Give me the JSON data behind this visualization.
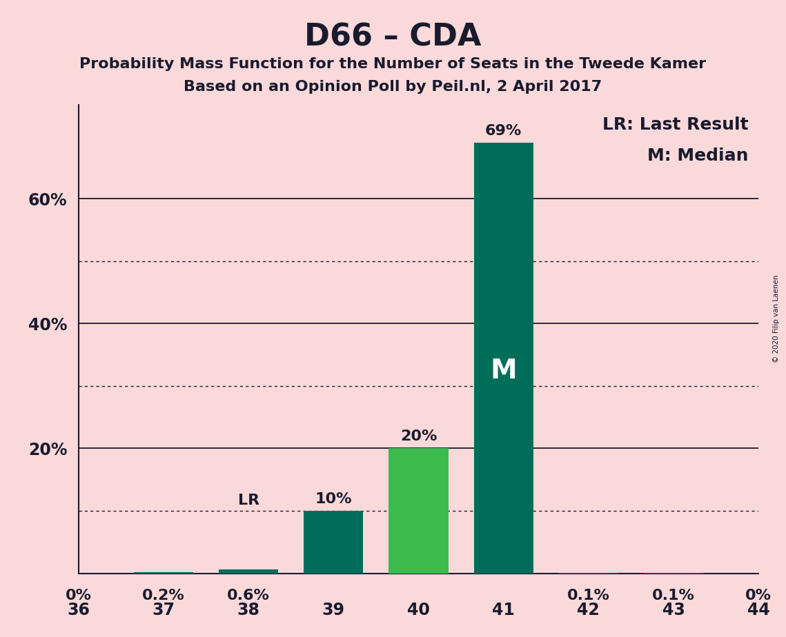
{
  "title": "D66 – CDA",
  "subtitle1": "Probability Mass Function for the Number of Seats in the Tweede Kamer",
  "subtitle2": "Based on an Opinion Poll by Peil.nl, 2 April 2017",
  "categories": [
    36,
    37,
    38,
    39,
    40,
    41,
    42,
    43,
    44
  ],
  "values": [
    0.0,
    0.2,
    0.6,
    10.0,
    20.0,
    69.0,
    0.1,
    0.1,
    0.0
  ],
  "bar_colors": [
    "#006d5b",
    "#006d5b",
    "#006d5b",
    "#006d5b",
    "#3dba4e",
    "#006d5b",
    "#006d5b",
    "#006d5b",
    "#006d5b"
  ],
  "labels": [
    "0%",
    "0.2%",
    "0.6%",
    "10%",
    "20%",
    "69%",
    "0.1%",
    "0.1%",
    "0%"
  ],
  "background_color": "#f9d9d9",
  "lr_index": 2,
  "median_index": 5,
  "lr_label": "LR",
  "median_label": "M",
  "legend_lr": "LR: Last Result",
  "legend_m": "M: Median",
  "copyright": "© 2020 Filip van Laenen",
  "ylim": [
    0,
    75
  ],
  "solid_yticks": [
    0,
    20,
    40,
    60
  ],
  "dotted_yticks": [
    10,
    30,
    50
  ],
  "title_fontsize": 32,
  "subtitle_fontsize": 16,
  "label_fontsize": 16,
  "tick_fontsize": 17,
  "legend_fontsize": 18
}
